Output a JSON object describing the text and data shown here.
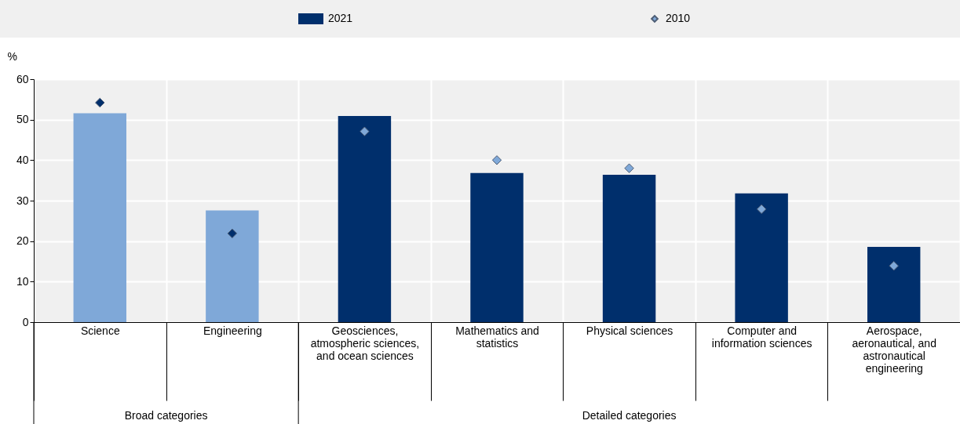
{
  "chart_data": {
    "type": "bar",
    "ylabel": "%",
    "legend": "top",
    "grid": true,
    "marker": "diamond",
    "categories": [
      "Science",
      "Engineering",
      "Geosciences, atmospheric sciences, and ocean sciences",
      "Mathematics and statistics",
      "Physical sciences",
      "Computer and information sciences",
      "Aerospace, aeronautical, and astronautical engineering"
    ],
    "series": [
      {
        "name": "2021",
        "type": "bar",
        "color": "#002f6c",
        "colors": [
          "#7fa8d8",
          "#7fa8d8",
          "#002f6c",
          "#002f6c",
          "#002f6c",
          "#002f6c",
          "#002f6c"
        ],
        "values": [
          51.6,
          27.6,
          50.9,
          36.8,
          36.4,
          31.8,
          18.6
        ]
      },
      {
        "name": "2010",
        "type": "scatter",
        "color": "#7fa8d8",
        "colors": [
          "#002f6c",
          "#002f6c",
          "#7fa8d8",
          "#7fa8d8",
          "#7fa8d8",
          "#7fa8d8",
          "#7fa8d8"
        ],
        "values": [
          54.2,
          21.9,
          47.1,
          40.0,
          38.0,
          27.9,
          13.9
        ]
      }
    ],
    "ylim": [
      0,
      60
    ],
    "yticks": [
      0,
      10,
      20,
      30,
      40,
      50,
      60
    ],
    "annotations": [
      "Broad categories",
      "Detailed categories"
    ]
  }
}
